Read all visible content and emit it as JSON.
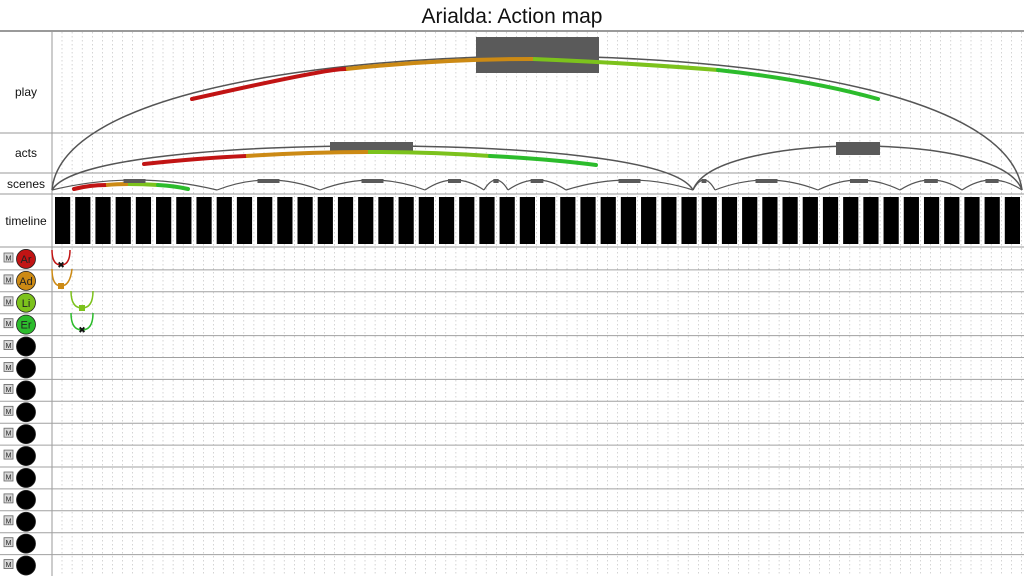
{
  "title": "Arialda: Action map",
  "lanes": {
    "play": "play",
    "acts": "acts",
    "scenes": "scenes",
    "timeline": "timeline"
  },
  "timeline_units": 48,
  "characters": [
    {
      "initials": "Ar",
      "color": "#c11414",
      "mute": "M"
    },
    {
      "initials": "Ad",
      "color": "#cc8a14",
      "mute": "M"
    },
    {
      "initials": "Li",
      "color": "#7cc21c",
      "mute": "M"
    },
    {
      "initials": "Er",
      "color": "#2cbc2c",
      "mute": "M"
    },
    {
      "initials": "",
      "color": "#000000",
      "mute": "M"
    },
    {
      "initials": "",
      "color": "#000000",
      "mute": "M"
    },
    {
      "initials": "",
      "color": "#000000",
      "mute": "M"
    },
    {
      "initials": "",
      "color": "#000000",
      "mute": "M"
    },
    {
      "initials": "",
      "color": "#000000",
      "mute": "M"
    },
    {
      "initials": "",
      "color": "#000000",
      "mute": "M"
    },
    {
      "initials": "",
      "color": "#000000",
      "mute": "M"
    },
    {
      "initials": "",
      "color": "#000000",
      "mute": "M"
    },
    {
      "initials": "",
      "color": "#000000",
      "mute": "M"
    },
    {
      "initials": "",
      "color": "#000000",
      "mute": "M"
    },
    {
      "initials": "",
      "color": "#000000",
      "mute": "M"
    }
  ],
  "palette": {
    "red": "#c11414",
    "orange": "#cc8a14",
    "lime": "#7cc21c",
    "green": "#2cbc2c",
    "block": "#5a5a5a",
    "arc": "#555555"
  }
}
